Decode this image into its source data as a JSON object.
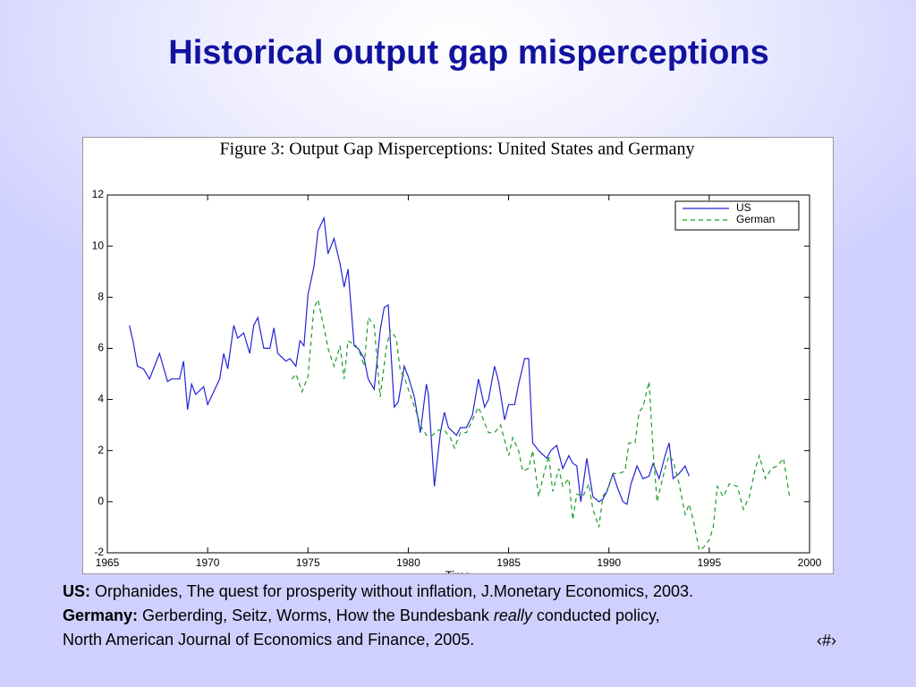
{
  "slide_title": "Historical output gap misperceptions",
  "notes": {
    "us": {
      "label": "US:",
      "text": " Orphanides, The quest for prosperity without inflation, J.Monetary Economics, 2003."
    },
    "germany": {
      "label": "Germany:",
      "text": " Gerberding, Seitz, Worms, How the Bundesbank ",
      "emphasis": "really",
      "text_end": " conducted policy,"
    },
    "germany_journal": "North American Journal of Economics and Finance, 2005."
  },
  "page_number": "‹#›",
  "chart_data": {
    "type": "line",
    "title": "Figure 3:  Output Gap Misperceptions:  United States and Germany",
    "xlabel": "Time",
    "xlim": [
      1965,
      2000
    ],
    "xticks": [
      1965,
      1970,
      1975,
      1980,
      1985,
      1990,
      1995,
      2000
    ],
    "ylim": [
      -2,
      12
    ],
    "yticks": [
      -2,
      0,
      2,
      4,
      6,
      8,
      10,
      12
    ],
    "grid": false,
    "legend": "upper right",
    "series": [
      {
        "name": "US",
        "color": "#2323d8",
        "dash": false,
        "x": [
          1966.1,
          1966.3,
          1966.5,
          1966.8,
          1967.1,
          1967.6,
          1968.0,
          1968.2,
          1968.6,
          1968.8,
          1969.0,
          1969.2,
          1969.4,
          1969.8,
          1970.0,
          1970.6,
          1970.8,
          1971.0,
          1971.3,
          1971.5,
          1971.8,
          1972.1,
          1972.3,
          1972.5,
          1972.8,
          1973.1,
          1973.3,
          1973.5,
          1973.9,
          1974.1,
          1974.4,
          1974.6,
          1974.8,
          1975.0,
          1975.3,
          1975.5,
          1975.8,
          1976.0,
          1976.3,
          1976.6,
          1976.8,
          1977.0,
          1977.3,
          1977.5,
          1977.8,
          1978.0,
          1978.3,
          1978.6,
          1978.8,
          1979.0,
          1979.3,
          1979.5,
          1979.8,
          1980.0,
          1980.3,
          1980.6,
          1980.9,
          1981.0,
          1981.3,
          1981.6,
          1981.8,
          1982.0,
          1982.4,
          1982.6,
          1982.9,
          1983.2,
          1983.5,
          1983.8,
          1984.0,
          1984.3,
          1984.5,
          1984.8,
          1985.0,
          1985.3,
          1985.5,
          1985.8,
          1986.0,
          1986.2,
          1986.5,
          1986.9,
          1987.1,
          1987.4,
          1987.7,
          1988.0,
          1988.2,
          1988.4,
          1988.6,
          1988.9,
          1989.2,
          1989.5,
          1989.7,
          1989.9,
          1990.2,
          1990.4,
          1990.7,
          1990.9,
          1991.1,
          1991.4,
          1991.7,
          1992.0,
          1992.2,
          1992.5,
          1992.8,
          1993.0,
          1993.2,
          1993.5,
          1993.8,
          1994.0
        ],
        "values": [
          6.9,
          6.2,
          5.3,
          5.2,
          4.8,
          5.8,
          4.7,
          4.8,
          4.8,
          5.5,
          3.6,
          4.6,
          4.2,
          4.5,
          3.8,
          4.8,
          5.8,
          5.2,
          6.9,
          6.4,
          6.6,
          5.8,
          6.9,
          7.2,
          6.0,
          6.0,
          6.8,
          5.8,
          5.5,
          5.6,
          5.3,
          6.3,
          6.1,
          8.1,
          9.2,
          10.6,
          11.1,
          9.7,
          10.3,
          9.3,
          8.4,
          9.1,
          6.1,
          6.0,
          5.6,
          4.8,
          4.4,
          6.7,
          7.6,
          7.7,
          3.7,
          3.9,
          5.3,
          4.9,
          4.1,
          2.7,
          4.6,
          4.2,
          0.6,
          2.7,
          3.5,
          2.9,
          2.6,
          2.9,
          2.9,
          3.4,
          4.8,
          3.7,
          4.0,
          5.3,
          4.7,
          3.2,
          3.8,
          3.8,
          4.6,
          5.6,
          5.6,
          2.3,
          2.0,
          1.7,
          2.0,
          2.2,
          1.3,
          1.8,
          1.5,
          1.4,
          0.0,
          1.7,
          0.2,
          0.0,
          0.1,
          0.4,
          1.1,
          0.6,
          0.0,
          -0.1,
          0.7,
          1.4,
          0.9,
          1.0,
          1.5,
          0.9,
          1.8,
          2.3,
          0.9,
          1.1,
          1.4,
          1.0
        ]
      },
      {
        "name": "German",
        "color": "#1f9a2a",
        "dash": true,
        "x": [
          1974.2,
          1974.4,
          1974.7,
          1975.0,
          1975.3,
          1975.5,
          1975.8,
          1976.0,
          1976.3,
          1976.6,
          1976.8,
          1977.0,
          1977.4,
          1977.6,
          1977.8,
          1978.0,
          1978.3,
          1978.6,
          1978.9,
          1979.1,
          1979.4,
          1979.6,
          1979.8,
          1980.0,
          1980.4,
          1980.6,
          1980.9,
          1981.2,
          1981.5,
          1981.8,
          1982.1,
          1982.3,
          1982.6,
          1982.9,
          1983.2,
          1983.5,
          1983.8,
          1984.0,
          1984.3,
          1984.6,
          1985.0,
          1985.2,
          1985.5,
          1985.7,
          1986.0,
          1986.2,
          1986.5,
          1986.7,
          1987.0,
          1987.2,
          1987.5,
          1987.7,
          1988.0,
          1988.2,
          1988.4,
          1988.7,
          1989.0,
          1989.2,
          1989.5,
          1989.7,
          1990.0,
          1990.2,
          1990.5,
          1990.8,
          1991.0,
          1991.3,
          1991.5,
          1991.7,
          1992.0,
          1992.2,
          1992.4,
          1992.8,
          1993.0,
          1993.2,
          1993.5,
          1993.8,
          1994.0,
          1994.2,
          1994.5,
          1994.7,
          1995.0,
          1995.2,
          1995.4,
          1995.7,
          1996.0,
          1996.4,
          1996.7,
          1997.0,
          1997.3,
          1997.5,
          1997.8,
          1998.1,
          1998.4,
          1998.7,
          1999.0
        ],
        "values": [
          4.8,
          5.0,
          4.3,
          4.9,
          7.6,
          7.9,
          6.8,
          6.0,
          5.3,
          6.1,
          4.8,
          6.3,
          6.1,
          5.8,
          5.3,
          7.2,
          6.9,
          4.1,
          6.0,
          6.7,
          6.4,
          5.1,
          4.9,
          4.4,
          3.5,
          3.0,
          2.6,
          2.6,
          2.8,
          2.8,
          2.5,
          2.1,
          2.7,
          2.7,
          3.2,
          3.7,
          3.1,
          2.7,
          2.7,
          3.0,
          1.8,
          2.5,
          2.0,
          1.2,
          1.3,
          2.0,
          0.2,
          0.9,
          1.8,
          0.4,
          1.3,
          0.6,
          0.9,
          -0.7,
          0.3,
          0.2,
          0.7,
          -0.3,
          -1.0,
          0.2,
          0.6,
          1.1,
          1.1,
          1.2,
          2.3,
          2.3,
          3.5,
          3.7,
          4.7,
          2.0,
          0.0,
          1.3,
          1.8,
          1.6,
          0.7,
          -0.5,
          -0.1,
          -0.7,
          -1.9,
          -1.8,
          -1.5,
          -1.0,
          0.6,
          0.2,
          0.7,
          0.6,
          -0.3,
          0.2,
          1.3,
          1.8,
          0.9,
          1.3,
          1.4,
          1.7,
          0.2
        ]
      }
    ]
  }
}
